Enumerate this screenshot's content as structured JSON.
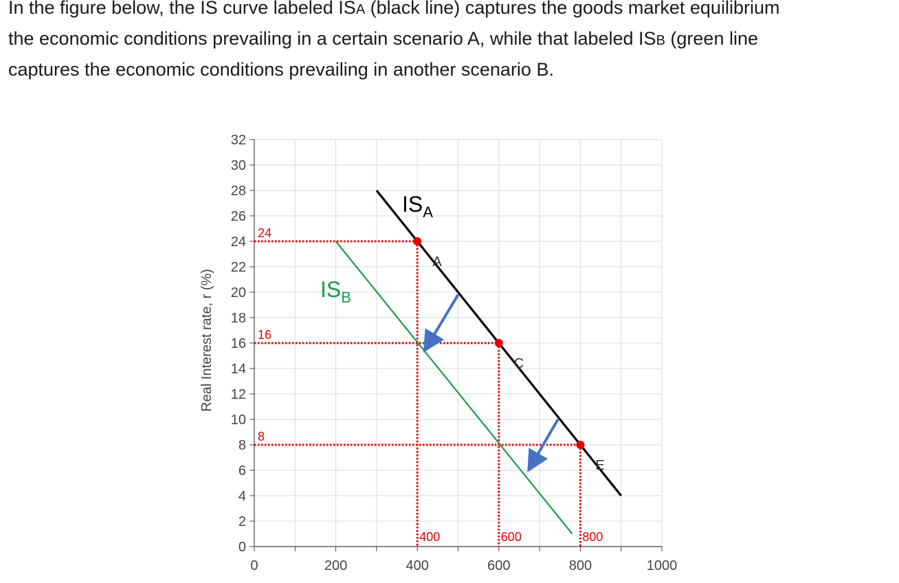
{
  "question": {
    "line1_a": "In the figure below, the IS curve labeled IS",
    "line1_sub": "A",
    "line1_b": " (black line) captures the goods market equilibrium",
    "line2_a": "the economic conditions prevailing in a certain scenario A, while that labeled IS",
    "line2_sub": "B",
    "line2_b": " (green line",
    "line3": "captures the economic conditions prevailing in another scenario B."
  },
  "chart_data": {
    "type": "line",
    "ylabel": "Real Interest rate, r (%)",
    "xlabel": "",
    "xlim": [
      0,
      1000
    ],
    "ylim": [
      0,
      32
    ],
    "x_ticks": [
      0,
      200,
      400,
      600,
      800,
      1000
    ],
    "y_ticks": [
      0,
      2,
      4,
      6,
      8,
      10,
      12,
      14,
      16,
      18,
      20,
      22,
      24,
      26,
      28,
      30,
      32
    ],
    "grid": true,
    "series": [
      {
        "name": "IS",
        "name_sub": "A",
        "color": "#000000",
        "x": [
          300,
          900
        ],
        "y": [
          28,
          4
        ]
      },
      {
        "name": "IS",
        "name_sub": "B",
        "color": "#1f9a4a",
        "x": [
          200,
          780
        ],
        "y": [
          24,
          1
        ]
      }
    ],
    "points": [
      {
        "x": 400,
        "y": 24,
        "label": "A",
        "color": "#e60000"
      },
      {
        "x": 600,
        "y": 16,
        "label": "C",
        "color": "#e60000"
      },
      {
        "x": 800,
        "y": 8,
        "label": "E",
        "color": "#e60000"
      }
    ],
    "dotted_guides_color": "#e60000",
    "guide_y_labels": [
      "24",
      "16",
      "8"
    ],
    "guide_x_labels": [
      "400",
      "600",
      "800"
    ],
    "arrows": [
      {
        "from": [
          500,
          19.8
        ],
        "to": [
          425,
          15.8
        ],
        "color": "#4472c4"
      },
      {
        "from": [
          745,
          10.0
        ],
        "to": [
          680,
          6.4
        ],
        "color": "#4472c4"
      }
    ]
  }
}
